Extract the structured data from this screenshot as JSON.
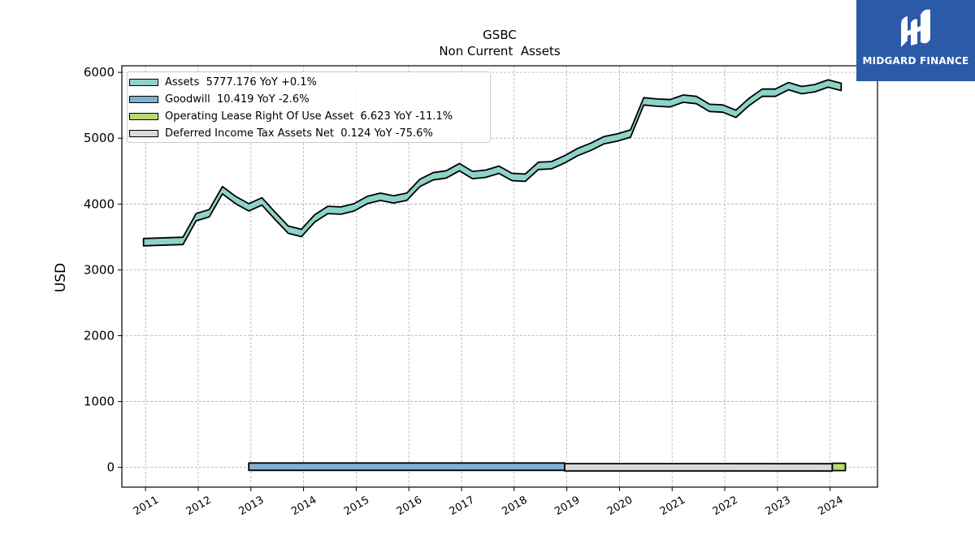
{
  "chart_data": {
    "type": "area",
    "title": "GSBC",
    "subtitle": "Non Current  Assets",
    "ylabel": "USD",
    "ylim": [
      -300,
      6100
    ],
    "xlim": [
      2010.55,
      2024.9
    ],
    "yticks": [
      0,
      1000,
      2000,
      3000,
      4000,
      5000,
      6000
    ],
    "xticks": [
      "2011",
      "2012",
      "2013",
      "2014",
      "2015",
      "2016",
      "2017",
      "2018",
      "2019",
      "2020",
      "2021",
      "2022",
      "2023",
      "2024"
    ],
    "grid": true,
    "legend_position": "top-left",
    "series": [
      {
        "name": "Assets",
        "legend": "Assets  5777.176 YoY +0.1%",
        "color": "#8dd3c7",
        "x": [
          2010.96,
          2011.71,
          2011.96,
          2012.21,
          2012.46,
          2012.71,
          2012.96,
          2013.21,
          2013.46,
          2013.71,
          2013.96,
          2014.21,
          2014.46,
          2014.71,
          2014.96,
          2015.21,
          2015.46,
          2015.71,
          2015.96,
          2016.21,
          2016.46,
          2016.71,
          2016.96,
          2017.21,
          2017.46,
          2017.71,
          2017.96,
          2018.21,
          2018.46,
          2018.71,
          2018.96,
          2019.21,
          2019.46,
          2019.71,
          2019.96,
          2020.21,
          2020.46,
          2020.71,
          2020.96,
          2021.21,
          2021.46,
          2021.71,
          2021.96,
          2022.21,
          2022.46,
          2022.71,
          2022.96,
          2023.21,
          2023.46,
          2023.71,
          2023.96,
          2024.21
        ],
        "values": [
          3420,
          3440,
          3800,
          3860,
          4210,
          4060,
          3950,
          4040,
          3820,
          3610,
          3560,
          3780,
          3910,
          3900,
          3950,
          4060,
          4110,
          4070,
          4110,
          4320,
          4420,
          4450,
          4560,
          4440,
          4460,
          4520,
          4410,
          4400,
          4580,
          4590,
          4680,
          4790,
          4870,
          4970,
          5010,
          5070,
          5560,
          5540,
          5530,
          5600,
          5580,
          5460,
          5450,
          5370,
          5550,
          5690,
          5690,
          5790,
          5730,
          5760,
          5830,
          5780
        ]
      },
      {
        "name": "Goodwill",
        "legend": "Goodwill  10.419 YoY -2.6%",
        "color": "#80b1d3",
        "x": [
          2012.96,
          2014.96,
          2016.21,
          2018.96
        ],
        "values": [
          10.6,
          10.9,
          10.7,
          10.7
        ]
      },
      {
        "name": "Operating Lease Right Of Use Asset",
        "legend": "Operating Lease Right Of Use Asset  6.623 YoY -11.1%",
        "color": "#b3de69",
        "x": [
          2024.04,
          2024.29
        ],
        "values": [
          7.4,
          6.6
        ]
      },
      {
        "name": "Deferred Income Tax Assets Net",
        "legend": "Deferred Income Tax Assets Net  0.124 YoY -75.6%",
        "color": "#d9d9d9",
        "x": [
          2018.96,
          2024.04
        ],
        "values": [
          0.5,
          0.12
        ]
      }
    ]
  },
  "logo": {
    "text": "MIDGARD FINANCE",
    "color": "#2b5aa8"
  }
}
